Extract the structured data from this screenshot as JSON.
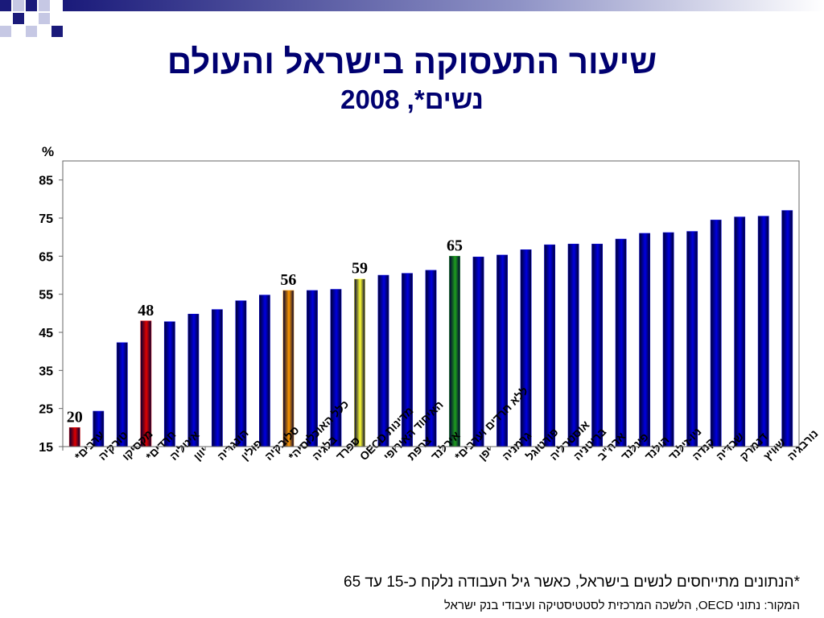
{
  "title": "שיעור התעסוקה בישראל והעולם",
  "subtitle": "נשים*, 2008",
  "footnote": "*הנתונים מתייחסים לנשים בישראל, כאשר גיל העבודה נלקח כ-15 עד 65",
  "source": "המקור: נתוני  OECD, הלשכה המרכזית לסטטיסטיקה ועיבודי בנק ישראל",
  "chart_data": {
    "type": "bar",
    "ylabel": "%",
    "ylim": [
      15,
      90
    ],
    "yticks": [
      15,
      25,
      35,
      45,
      55,
      65,
      75,
      85
    ],
    "grid": false,
    "categories": [
      "ערבים*",
      "טורקיה",
      "מקסיקו",
      "חרדים*",
      "איטליה",
      "יוון",
      "הונגריה",
      "פולין",
      "סלובקיה",
      "כלל האוכלוסיה*",
      "בלגיה",
      "ספרד",
      "מדינות OECD",
      "האיחוד האירופי",
      "צרפת",
      "אירלנד",
      "ללא חרדים וערבים*",
      "יפן",
      "גרמניה",
      "פורטוגל",
      "אוסטרליה",
      "בריטניה",
      "ארה\"ב",
      "פינלנד",
      "הולנד",
      "ניו-זילנד",
      "קנדה",
      "שבדיה",
      "דנמרק",
      "שוויץ",
      "נורבגיה"
    ],
    "values": [
      20,
      24.3,
      42.3,
      48,
      47.8,
      49.8,
      51,
      53.3,
      54.8,
      56,
      56,
      56.3,
      59,
      60,
      60.5,
      61.3,
      65,
      64.8,
      65.3,
      66.7,
      68,
      68.2,
      68.2,
      69.5,
      71,
      71.2,
      71.5,
      74.5,
      75.3,
      75.5,
      77
    ],
    "data_labels": {
      "0": "20",
      "3": "48",
      "9": "56",
      "12": "59",
      "16": "65"
    },
    "bar_colors": {
      "default": "#0000e0",
      "0": "#e00000",
      "3": "#e00000",
      "9": "#ff9900",
      "12": "#ffff33",
      "16": "#1e9e1e"
    }
  }
}
